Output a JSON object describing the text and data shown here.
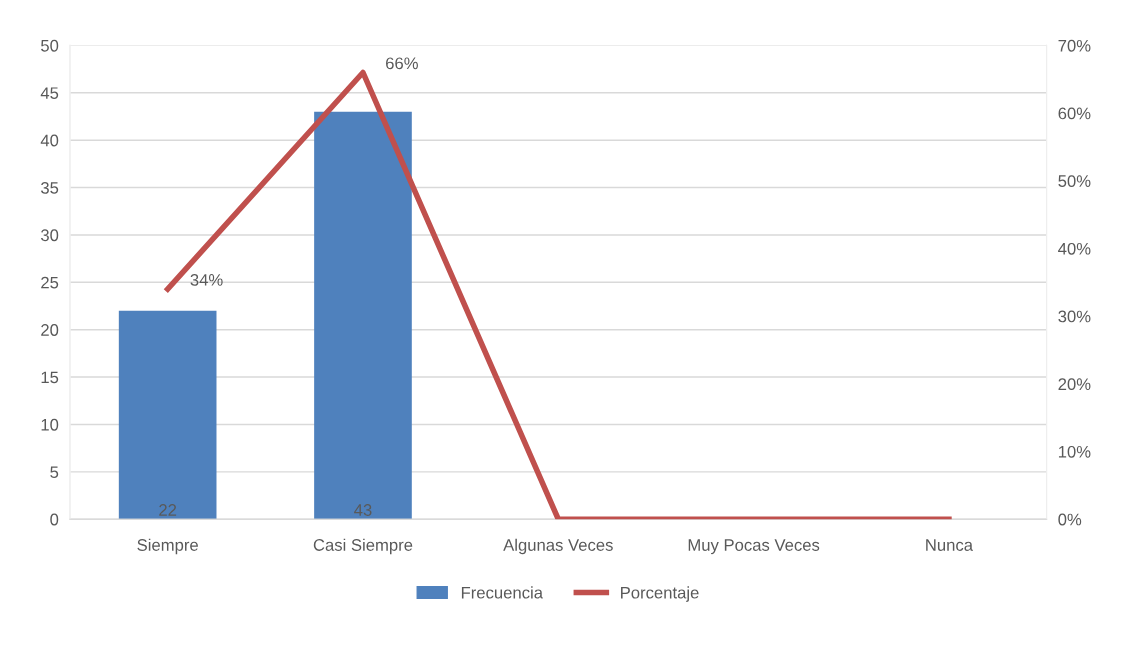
{
  "chart_data": {
    "type": "bar",
    "categories": [
      "Siempre",
      "Casi Siempre",
      "Algunas Veces",
      "Muy Pocas Veces",
      "Nunca"
    ],
    "series": [
      {
        "name": "Frecuencia",
        "color": "#4f81bd",
        "values": [
          22,
          43,
          0,
          0,
          0
        ],
        "value_labels": [
          "22",
          "43",
          null,
          null,
          null
        ]
      },
      {
        "name": "Porcentaje",
        "type": "line",
        "axis": "y2",
        "color": "#c0504d",
        "values": [
          34,
          66,
          0,
          0,
          0
        ],
        "value_labels": [
          "34%",
          "66%",
          null,
          null,
          null
        ]
      }
    ],
    "ylim": [
      0,
      50
    ],
    "yticks": [
      0,
      5,
      10,
      15,
      20,
      25,
      30,
      35,
      40,
      45,
      50
    ],
    "y2lim": [
      0,
      70
    ],
    "y2ticks": [
      {
        "value": 0,
        "label": "0%"
      },
      {
        "value": 10,
        "label": "10%"
      },
      {
        "value": 20,
        "label": "20%"
      },
      {
        "value": 30,
        "label": "30%"
      },
      {
        "value": 40,
        "label": "40%"
      },
      {
        "value": 50,
        "label": "50%"
      },
      {
        "value": 60,
        "label": "60%"
      },
      {
        "value": 70,
        "label": "70%"
      }
    ],
    "grid": "y",
    "legend": "bottom",
    "marker": "none",
    "line_style": "solid"
  }
}
